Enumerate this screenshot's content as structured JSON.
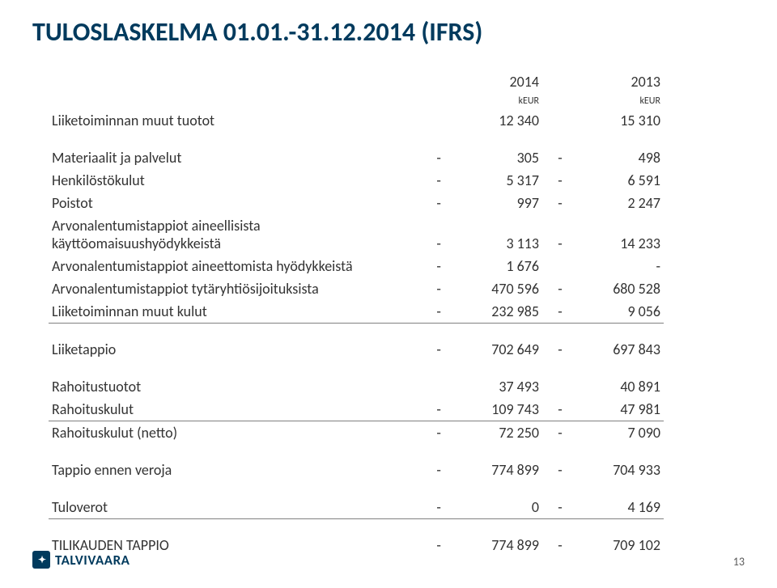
{
  "title": "TULOSLASKELMA 01.01.-31.12.2014 (IFRS)",
  "header": {
    "year1": "2014",
    "year2": "2013",
    "unit1": "kEUR",
    "unit2": "kEUR"
  },
  "rows": {
    "r1": {
      "label": "Liiketoiminnan muut tuotot",
      "s1": "",
      "v1": "12 340",
      "s2": "",
      "v2": "15 310"
    },
    "r2": {
      "label": "Materiaalit ja palvelut",
      "s1": "-",
      "v1": "305",
      "s2": "-",
      "v2": "498"
    },
    "r3": {
      "label": "Henkilöstökulut",
      "s1": "-",
      "v1": "5 317",
      "s2": "-",
      "v2": "6 591"
    },
    "r4": {
      "label": "Poistot",
      "s1": "-",
      "v1": "997",
      "s2": "-",
      "v2": "2 247"
    },
    "r5": {
      "label": "Arvonalentumistappiot aineellisista käyttöomaisuushyödykkeistä",
      "s1": "-",
      "v1": "3 113",
      "s2": "-",
      "v2": "14 233"
    },
    "r6": {
      "label": "Arvonalentumistappiot aineettomista hyödykkeistä",
      "s1": "-",
      "v1": "1 676",
      "s2": "",
      "v2": "-"
    },
    "r7": {
      "label": "Arvonalentumistappiot tytäryhtiösijoituksista",
      "s1": "-",
      "v1": "470 596",
      "s2": "-",
      "v2": "680 528"
    },
    "r8": {
      "label": "Liiketoiminnan muut kulut",
      "s1": "-",
      "v1": "232 985",
      "s2": "-",
      "v2": "9 056"
    },
    "r9": {
      "label": "Liiketappio",
      "s1": "-",
      "v1": "702 649",
      "s2": "-",
      "v2": "697 843"
    },
    "r10": {
      "label": "Rahoitustuotot",
      "s1": "",
      "v1": "37 493",
      "s2": "",
      "v2": "40 891"
    },
    "r11": {
      "label": "Rahoituskulut",
      "s1": "-",
      "v1": "109 743",
      "s2": "-",
      "v2": "47 981"
    },
    "r12": {
      "label": "Rahoituskulut (netto)",
      "s1": "-",
      "v1": "72 250",
      "s2": "-",
      "v2": "7 090"
    },
    "r13": {
      "label": "Tappio ennen veroja",
      "s1": "-",
      "v1": "774 899",
      "s2": "-",
      "v2": "704 933"
    },
    "r14": {
      "label": "Tuloverot",
      "s1": "-",
      "v1": "0",
      "s2": "-",
      "v2": "4 169"
    },
    "r15": {
      "label": "TILIKAUDEN TAPPIO",
      "s1": "-",
      "v1": "774 899",
      "s2": "-",
      "v2": "709 102"
    }
  },
  "footer": {
    "logo_text": "TALVIVAARA",
    "page_number": "13"
  },
  "style": {
    "title_color": "#003a5d",
    "text_color": "#333333",
    "rule_color": "#808080",
    "background": "#ffffff",
    "title_fontsize": 32,
    "body_fontsize": 18,
    "unit_fontsize": 12
  }
}
